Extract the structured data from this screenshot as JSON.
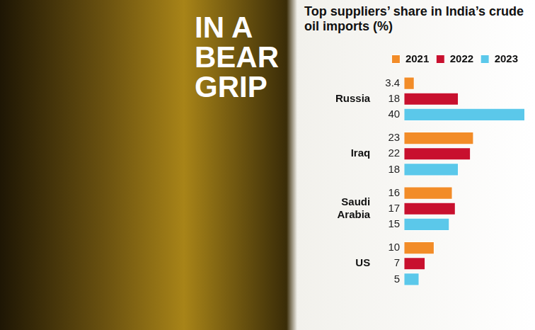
{
  "chart_data": {
    "type": "bar",
    "title": "IN A BEAR GRIP",
    "subtitle": "Top suppliers’ share in India’s crude oil imports (%)",
    "orientation": "horizontal",
    "categories": [
      "Russia",
      "Iraq",
      "Saudi Arabia",
      "US"
    ],
    "series": [
      {
        "name": "2021",
        "color": "#f28c28",
        "values": [
          3.4,
          23,
          16,
          10
        ]
      },
      {
        "name": "2022",
        "color": "#c8102e",
        "values": [
          18,
          22,
          17,
          7
        ]
      },
      {
        "name": "2023",
        "color": "#5bc8ea",
        "values": [
          40,
          18,
          15,
          5
        ]
      }
    ],
    "xlim": [
      0,
      40
    ],
    "data_labels": true,
    "tick_labels": "y",
    "legend": "top",
    "grid": false
  }
}
